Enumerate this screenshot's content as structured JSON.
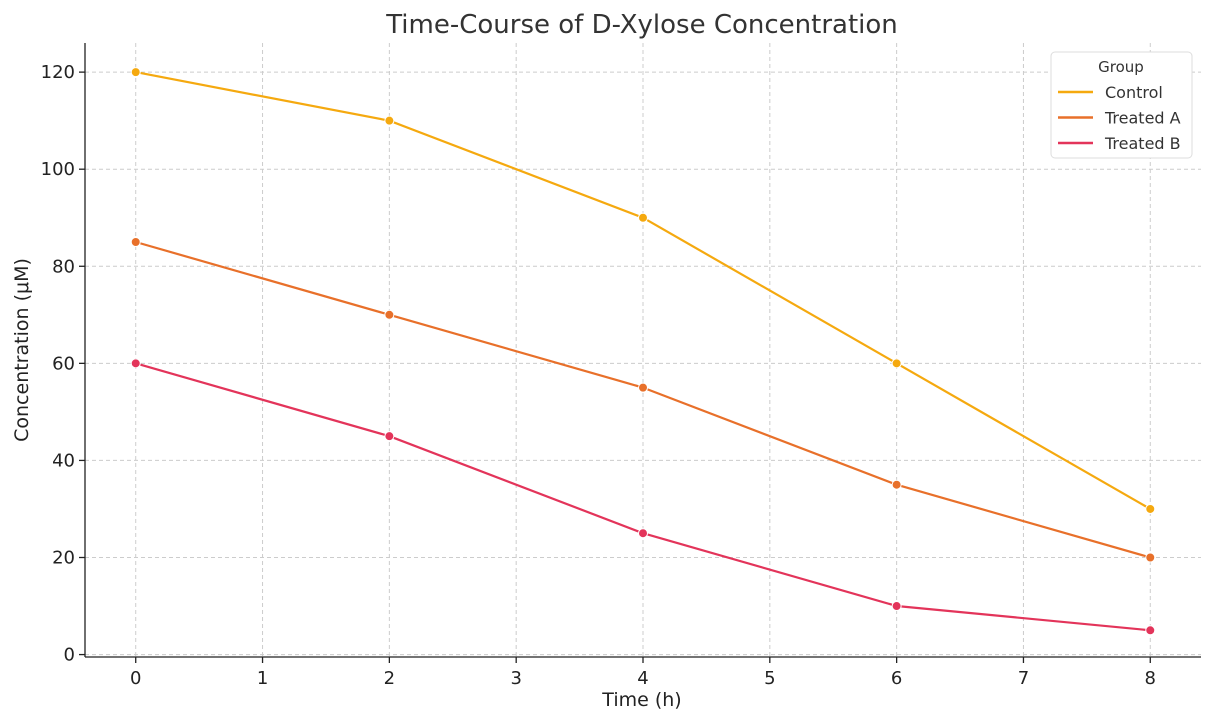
{
  "chart_data": {
    "type": "line",
    "title": "Time-Course of D-Xylose Concentration",
    "xlabel": "Time (h)",
    "ylabel": "Concentration (μM)",
    "x": [
      0,
      2,
      4,
      6,
      8
    ],
    "xlim": [
      -0.4,
      8.4
    ],
    "ylim": [
      -0.5,
      126
    ],
    "xticks": [
      0,
      1,
      2,
      3,
      4,
      5,
      6,
      7,
      8
    ],
    "yticks": [
      0,
      20,
      40,
      60,
      80,
      100,
      120
    ],
    "grid": true,
    "legend": {
      "title": "Group",
      "placement": "top-right"
    },
    "series": [
      {
        "name": "Control",
        "color": "#F5A90F",
        "values": [
          120,
          110,
          90,
          60,
          30
        ]
      },
      {
        "name": "Treated A",
        "color": "#E8702A",
        "values": [
          85,
          70,
          55,
          35,
          20
        ]
      },
      {
        "name": "Treated B",
        "color": "#E3345A",
        "values": [
          60,
          45,
          25,
          10,
          5
        ]
      }
    ]
  }
}
